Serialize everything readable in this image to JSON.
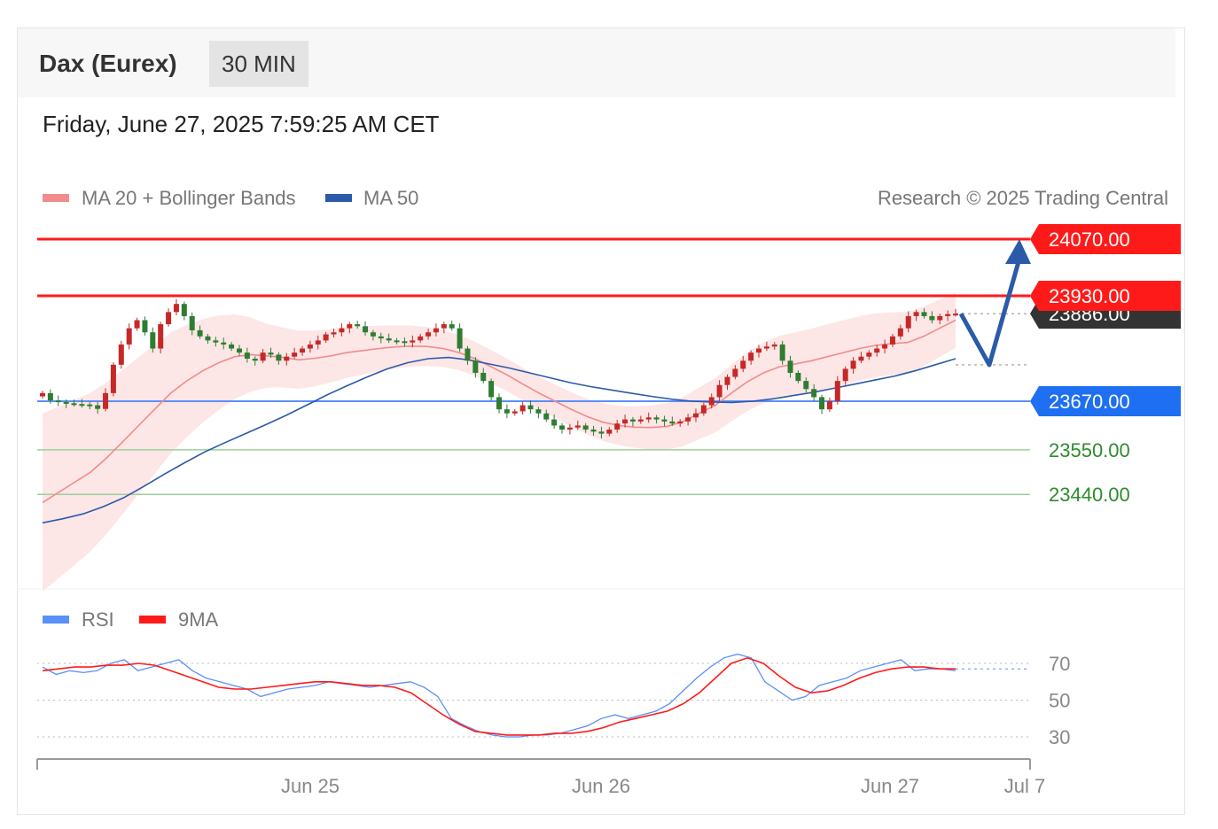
{
  "header": {
    "title": "Dax (Eurex)",
    "interval": "30 MIN",
    "datetime": "Friday, June 27, 2025 7:59:25 AM CET"
  },
  "legend": {
    "ma20_label": "MA 20 + Bollinger Bands",
    "ma50_label": "MA 50",
    "copyright": "Research © 2025 Trading Central",
    "rsi_label": "RSI",
    "rsi_ma_label": "9MA"
  },
  "colors": {
    "resistance": "#ff1a1a",
    "support": "#5b8ff9",
    "support_weak": "#9ccf9c",
    "current": "#333333",
    "ma20": "#f28b8b",
    "ma50": "#2b5aa8",
    "band": "#fde2e2",
    "arrow": "#2b5aa8",
    "candle_up": "#c62828",
    "candle_down": "#2e7d32",
    "rsi": "#5b8ff9",
    "rsi_ma": "#ff1a1a",
    "green_text": "#2e8b2e"
  },
  "chart_data": [
    {
      "type": "candlestick",
      "title": "Dax (Eurex) 30 MIN",
      "x_labels": [
        "Jun 25",
        "Jun 26",
        "Jun 27",
        "Jul 7"
      ],
      "ylim": [
        23270,
        24120
      ],
      "levels": [
        {
          "name": "resistance-2",
          "value": 24070.0,
          "label": "24070.00",
          "kind": "resistance"
        },
        {
          "name": "resistance-1",
          "value": 23930.0,
          "label": "23930.00",
          "kind": "resistance"
        },
        {
          "name": "current",
          "value": 23886.0,
          "label": "23886.00",
          "kind": "current"
        },
        {
          "name": "pivot",
          "value": 23670.0,
          "label": "23670.00",
          "kind": "pivot"
        },
        {
          "name": "support-1",
          "value": 23550.0,
          "label": "23550.00",
          "kind": "support"
        },
        {
          "name": "support-2",
          "value": 23440.0,
          "label": "23440.00",
          "kind": "support"
        }
      ],
      "close_series": [
        23690,
        23672,
        23668,
        23665,
        23663,
        23662,
        23660,
        23651,
        23690,
        23760,
        23810,
        23850,
        23870,
        23840,
        23800,
        23860,
        23890,
        23910,
        23880,
        23845,
        23830,
        23820,
        23815,
        23810,
        23800,
        23790,
        23775,
        23770,
        23790,
        23785,
        23770,
        23780,
        23790,
        23800,
        23810,
        23820,
        23835,
        23840,
        23850,
        23860,
        23855,
        23840,
        23830,
        23825,
        23820,
        23818,
        23815,
        23820,
        23830,
        23840,
        23850,
        23860,
        23850,
        23800,
        23770,
        23740,
        23720,
        23680,
        23650,
        23640,
        23645,
        23660,
        23650,
        23640,
        23625,
        23610,
        23600,
        23605,
        23610,
        23600,
        23595,
        23590,
        23600,
        23615,
        23625,
        23620,
        23625,
        23630,
        23625,
        23620,
        23615,
        23620,
        23630,
        23640,
        23660,
        23680,
        23710,
        23730,
        23750,
        23770,
        23790,
        23800,
        23805,
        23810,
        23770,
        23740,
        23720,
        23700,
        23680,
        23650,
        23670,
        23720,
        23750,
        23770,
        23780,
        23790,
        23800,
        23810,
        23830,
        23850,
        23880,
        23890,
        23880,
        23870,
        23880,
        23885,
        23886
      ],
      "ma20": [
        23420,
        23445,
        23470,
        23495,
        23530,
        23570,
        23610,
        23650,
        23690,
        23720,
        23745,
        23765,
        23780,
        23785,
        23782,
        23778,
        23772,
        23776,
        23782,
        23790,
        23795,
        23800,
        23804,
        23806,
        23805,
        23800,
        23790,
        23775,
        23755,
        23735,
        23712,
        23690,
        23670,
        23650,
        23632,
        23618,
        23610,
        23606,
        23605,
        23608,
        23620,
        23640,
        23660,
        23690,
        23718,
        23740,
        23755,
        23762,
        23770,
        23780,
        23790,
        23800,
        23808,
        23812,
        23815,
        23830,
        23850,
        23870
      ],
      "ma50": [
        23370,
        23380,
        23392,
        23410,
        23432,
        23460,
        23490,
        23518,
        23545,
        23568,
        23590,
        23612,
        23635,
        23660,
        23685,
        23708,
        23730,
        23750,
        23765,
        23775,
        23778,
        23772,
        23762,
        23752,
        23740,
        23728,
        23716,
        23706,
        23698,
        23690,
        23682,
        23675,
        23670,
        23668,
        23667,
        23670,
        23676,
        23684,
        23692,
        23702,
        23712,
        23722,
        23732,
        23745,
        23760,
        23775
      ]
    },
    {
      "type": "line",
      "title": "RSI",
      "y_ticks": [
        70,
        50,
        30
      ],
      "ylim": [
        20,
        80
      ],
      "rsi": [
        68,
        64,
        66,
        65,
        66,
        70,
        72,
        66,
        68,
        70,
        72,
        66,
        62,
        60,
        58,
        56,
        52,
        54,
        56,
        57,
        58,
        60,
        59,
        58,
        57,
        58,
        59,
        60,
        57,
        52,
        40,
        36,
        33,
        31,
        30,
        30,
        31,
        31,
        32,
        34,
        36,
        40,
        42,
        40,
        42,
        44,
        48,
        55,
        62,
        68,
        73,
        75,
        73,
        60,
        55,
        50,
        52,
        58,
        60,
        62,
        66,
        68,
        70,
        72,
        66,
        67,
        67,
        66
      ],
      "rsi_ma": [
        66,
        67,
        68,
        68,
        69,
        69,
        70,
        69,
        66,
        63,
        60,
        57,
        56,
        56,
        57,
        58,
        59,
        60,
        60,
        59,
        58,
        58,
        57,
        54,
        48,
        42,
        37,
        33,
        32,
        31,
        31,
        31,
        32,
        32,
        33,
        35,
        38,
        40,
        42,
        44,
        48,
        54,
        62,
        70,
        73,
        70,
        63,
        57,
        54,
        55,
        58,
        62,
        65,
        67,
        68,
        68,
        67,
        67
      ]
    }
  ]
}
